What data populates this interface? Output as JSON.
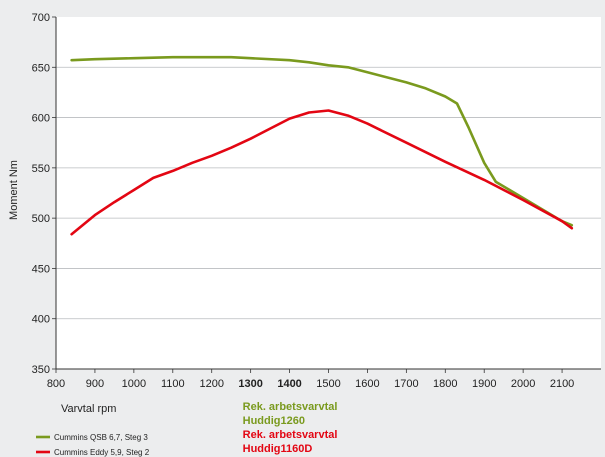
{
  "chart_data": {
    "type": "line",
    "title": "",
    "xlabel": "Varvtal rpm",
    "ylabel": "Moment Nm",
    "xlim": [
      800,
      2200
    ],
    "ylim": [
      350,
      700
    ],
    "x_ticks": [
      800,
      900,
      1000,
      1100,
      1200,
      1300,
      1400,
      1500,
      1600,
      1700,
      1800,
      1900,
      2000,
      2100
    ],
    "y_ticks": [
      350,
      400,
      450,
      500,
      550,
      600,
      650,
      700
    ],
    "highlighted_ticks": [
      {
        "value": 1300,
        "color": "#7a9a1e"
      },
      {
        "value": 1400,
        "color": "#e30613"
      }
    ],
    "grid": "horizontal",
    "legend_position": "bottom-left",
    "series": [
      {
        "name": "Cummins QSB 6,7, Steg 3",
        "color": "#7a9a1e",
        "x": [
          840,
          900,
          1000,
          1100,
          1200,
          1250,
          1300,
          1400,
          1450,
          1500,
          1550,
          1600,
          1700,
          1750,
          1800,
          1830,
          1860,
          1900,
          1930,
          2000,
          2100,
          2125
        ],
        "y": [
          657,
          658,
          659,
          660,
          660,
          660,
          659,
          657,
          655,
          652,
          650,
          645,
          635,
          629,
          621,
          614,
          590,
          555,
          536,
          520,
          497,
          493
        ]
      },
      {
        "name": "Cummins Eddy 5,9, Steg 2",
        "color": "#e30613",
        "x": [
          840,
          900,
          950,
          1000,
          1050,
          1100,
          1150,
          1200,
          1250,
          1300,
          1350,
          1400,
          1450,
          1500,
          1550,
          1600,
          1700,
          1800,
          1900,
          2000,
          2100,
          2125
        ],
        "y": [
          484,
          503,
          516,
          528,
          540,
          547,
          555,
          562,
          570,
          579,
          589,
          599,
          605,
          607,
          602,
          594,
          575,
          556,
          538,
          518,
          497,
          490
        ]
      }
    ],
    "annotations": [
      {
        "text": "Rek. arbetsvarvtal",
        "color": "#7a9a1e"
      },
      {
        "text": "Huddig1260",
        "color": "#7a9a1e"
      },
      {
        "text": "Rek. arbetsvarvtal",
        "color": "#e30613"
      },
      {
        "text": "Huddig1160D",
        "color": "#e30613"
      }
    ]
  }
}
